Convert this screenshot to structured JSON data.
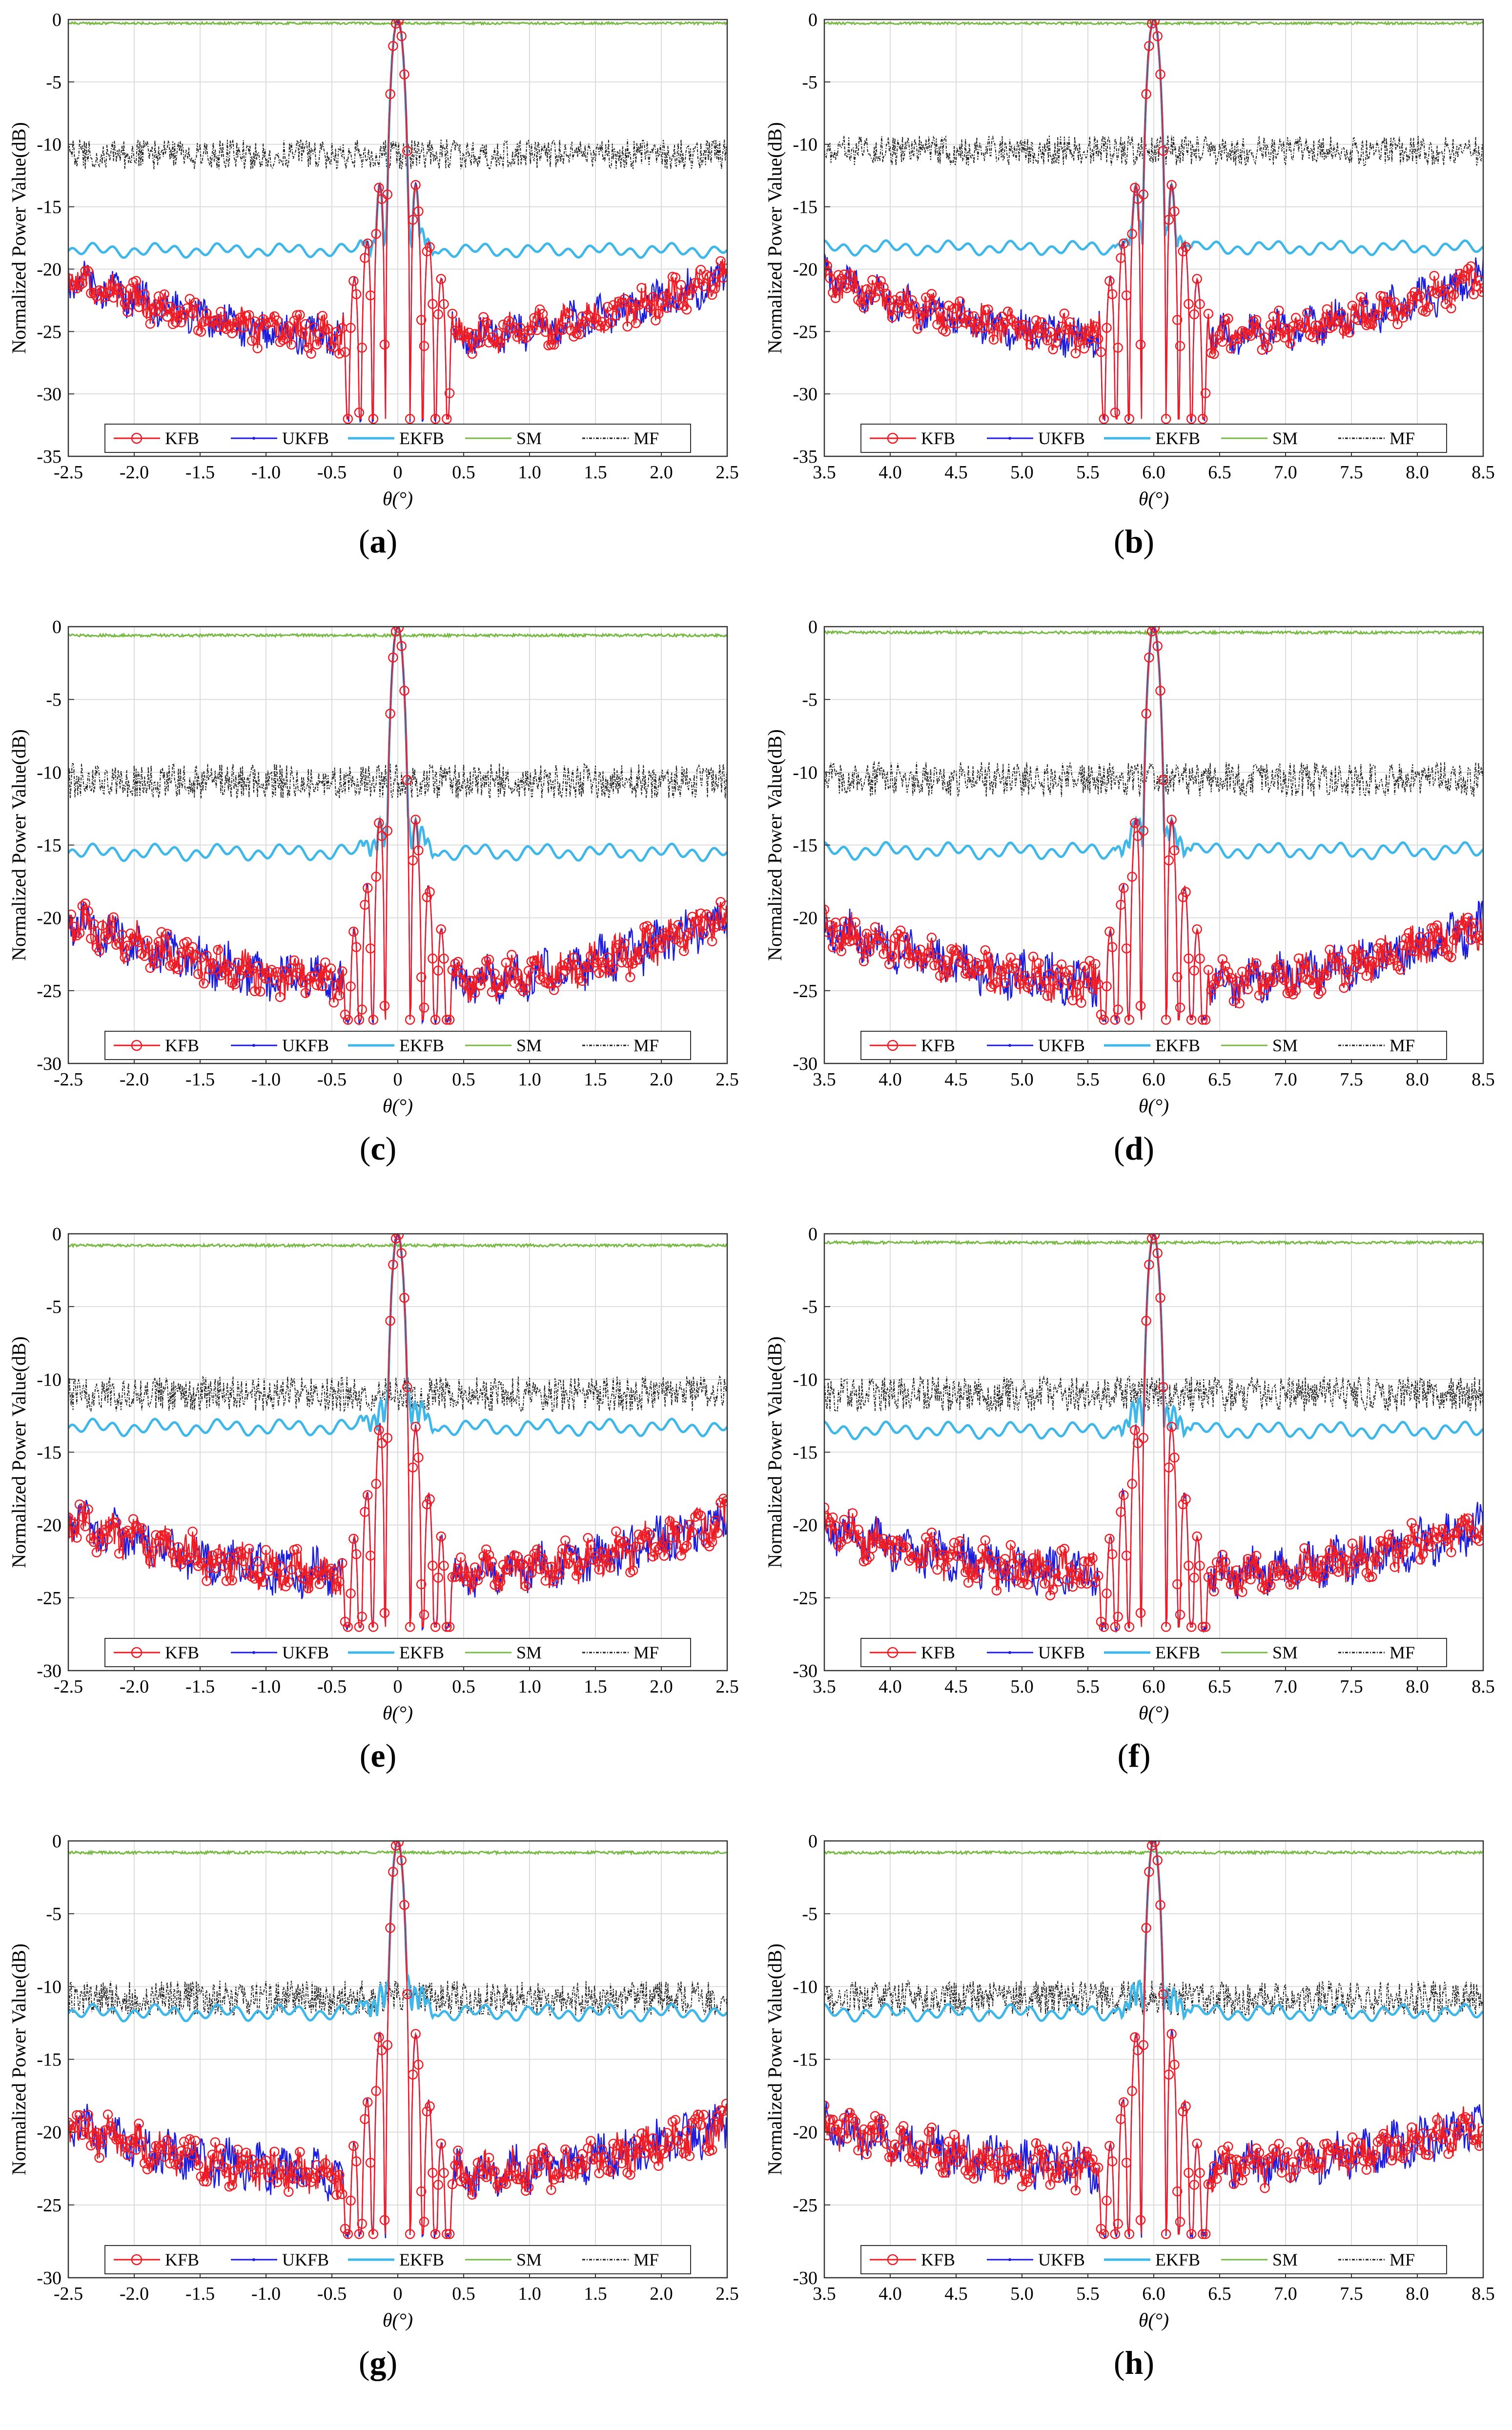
{
  "figure": {
    "panels": [
      "a",
      "b",
      "c",
      "d",
      "e",
      "f",
      "g",
      "h"
    ]
  },
  "chart_data": [
    {
      "id": "a",
      "type": "line",
      "label": "a",
      "xlabel": "θ(°)",
      "ylabel": "Normalized Power Value(dB)",
      "xlim": [
        -2.5,
        2.5
      ],
      "ylim": [
        -35,
        0
      ],
      "xticks": [
        "-2.5",
        "-2.0",
        "-1.5",
        "-1.0",
        "-0.5",
        "0",
        "0.5",
        "1.0",
        "1.5",
        "2.0",
        "2.5"
      ],
      "yticks": [
        "0",
        "-5",
        "-10",
        "-15",
        "-20",
        "-25",
        "-30",
        "-35"
      ],
      "yvals": [
        0,
        -5,
        -10,
        -15,
        -20,
        -25,
        -30,
        -35
      ],
      "center": 0,
      "mf_level": -10.8,
      "ekfb_level": -18.5,
      "sm_level": -0.3,
      "sidelobe_floor": -25.5,
      "sidelobe_edge": -20.5,
      "first_sidelobe": -13.2,
      "legend": [
        "KFB",
        "UKFB",
        "EKFB",
        "SM",
        "MF"
      ]
    },
    {
      "id": "b",
      "type": "line",
      "label": "b",
      "xlabel": "θ(°)",
      "ylabel": "Normalized Power Value(dB)",
      "xlim": [
        3.5,
        8.5
      ],
      "ylim": [
        -35,
        0
      ],
      "xticks": [
        "3.5",
        "4.0",
        "4.5",
        "5.0",
        "5.5",
        "6.0",
        "6.5",
        "7.0",
        "7.5",
        "8.0",
        "8.5"
      ],
      "yticks": [
        "0",
        "-5",
        "-10",
        "-15",
        "-20",
        "-25",
        "-30",
        "-35"
      ],
      "yvals": [
        0,
        -5,
        -10,
        -15,
        -20,
        -25,
        -30,
        -35
      ],
      "center": 6,
      "mf_level": -10.5,
      "ekfb_level": -18.3,
      "sm_level": -0.3,
      "sidelobe_floor": -25.5,
      "sidelobe_edge": -20.5,
      "first_sidelobe": -13.0,
      "legend": [
        "KFB",
        "UKFB",
        "EKFB",
        "SM",
        "MF"
      ]
    },
    {
      "id": "c",
      "type": "line",
      "label": "c",
      "xlabel": "θ(°)",
      "ylabel": "Normalized Power Value(dB)",
      "xlim": [
        -2.5,
        2.5
      ],
      "ylim": [
        -30,
        0
      ],
      "xticks": [
        "-2.5",
        "-2.0",
        "-1.5",
        "-1.0",
        "-0.5",
        "0",
        "0.5",
        "1.0",
        "1.5",
        "2.0",
        "2.5"
      ],
      "yticks": [
        "0",
        "-5",
        "-10",
        "-15",
        "-20",
        "-25",
        "-30"
      ],
      "yvals": [
        0,
        -5,
        -10,
        -15,
        -20,
        -25,
        -30
      ],
      "center": 0,
      "mf_level": -10.6,
      "ekfb_level": -15.5,
      "sm_level": -0.6,
      "sidelobe_floor": -24.5,
      "sidelobe_edge": -20.0,
      "first_sidelobe": -13.0,
      "legend": [
        "KFB",
        "UKFB",
        "EKFB",
        "SM",
        "MF"
      ]
    },
    {
      "id": "d",
      "type": "line",
      "label": "d",
      "xlabel": "θ(°)",
      "ylabel": "Normalized Power Value(dB)",
      "xlim": [
        3.5,
        8.5
      ],
      "ylim": [
        -30,
        0
      ],
      "xticks": [
        "3.5",
        "4.0",
        "4.5",
        "5.0",
        "5.5",
        "6.0",
        "6.5",
        "7.0",
        "7.5",
        "8.0",
        "8.5"
      ],
      "yticks": [
        "0",
        "-5",
        "-10",
        "-15",
        "-20",
        "-25",
        "-30"
      ],
      "yvals": [
        0,
        -5,
        -10,
        -15,
        -20,
        -25,
        -30
      ],
      "center": 6,
      "mf_level": -10.5,
      "ekfb_level": -15.4,
      "sm_level": -0.4,
      "sidelobe_floor": -24.5,
      "sidelobe_edge": -20.5,
      "first_sidelobe": -13.0,
      "legend": [
        "KFB",
        "UKFB",
        "EKFB",
        "SM",
        "MF"
      ]
    },
    {
      "id": "e",
      "type": "line",
      "label": "e",
      "xlabel": "θ(°)",
      "ylabel": "Normalized Power Value(dB)",
      "xlim": [
        -2.5,
        2.5
      ],
      "ylim": [
        -30,
        0
      ],
      "xticks": [
        "-2.5",
        "-2.0",
        "-1.5",
        "-1.0",
        "-0.5",
        "0",
        "0.5",
        "1.0",
        "1.5",
        "2.0",
        "2.5"
      ],
      "yticks": [
        "0",
        "-5",
        "-10",
        "-15",
        "-20",
        "-25",
        "-30"
      ],
      "yvals": [
        0,
        -5,
        -10,
        -15,
        -20,
        -25,
        -30
      ],
      "center": 0,
      "mf_level": -11.0,
      "ekfb_level": -13.3,
      "sm_level": -0.8,
      "sidelobe_floor": -23.5,
      "sidelobe_edge": -19.5,
      "first_sidelobe": -13.0,
      "legend": [
        "KFB",
        "UKFB",
        "EKFB",
        "SM",
        "MF"
      ]
    },
    {
      "id": "f",
      "type": "line",
      "label": "f",
      "xlabel": "θ(°)",
      "ylabel": "Normalized Power Value(dB)",
      "xlim": [
        3.5,
        8.5
      ],
      "ylim": [
        -30,
        0
      ],
      "xticks": [
        "3.5",
        "4.0",
        "4.5",
        "5.0",
        "5.5",
        "6.0",
        "6.5",
        "7.0",
        "7.5",
        "8.0",
        "8.5"
      ],
      "yticks": [
        "0",
        "-5",
        "-10",
        "-15",
        "-20",
        "-25",
        "-30"
      ],
      "yvals": [
        0,
        -5,
        -10,
        -15,
        -20,
        -25,
        -30
      ],
      "center": 6,
      "mf_level": -11.0,
      "ekfb_level": -13.5,
      "sm_level": -0.6,
      "sidelobe_floor": -23.5,
      "sidelobe_edge": -20.0,
      "first_sidelobe": -13.0,
      "legend": [
        "KFB",
        "UKFB",
        "EKFB",
        "SM",
        "MF"
      ]
    },
    {
      "id": "g",
      "type": "line",
      "label": "g",
      "xlabel": "θ(°)",
      "ylabel": "Normalized Power Value(dB)",
      "xlim": [
        -2.5,
        2.5
      ],
      "ylim": [
        -30,
        0
      ],
      "xticks": [
        "-2.5",
        "-2.0",
        "-1.5",
        "-1.0",
        "-0.5",
        "0",
        "0.5",
        "1.0",
        "1.5",
        "2.0",
        "2.5"
      ],
      "yticks": [
        "0",
        "-5",
        "-10",
        "-15",
        "-20",
        "-25",
        "-30"
      ],
      "yvals": [
        0,
        -5,
        -10,
        -15,
        -20,
        -25,
        -30
      ],
      "center": 0,
      "mf_level": -10.8,
      "ekfb_level": -11.8,
      "sm_level": -0.8,
      "sidelobe_floor": -23.0,
      "sidelobe_edge": -19.5,
      "first_sidelobe": -13.0,
      "legend": [
        "KFB",
        "UKFB",
        "EKFB",
        "SM",
        "MF"
      ]
    },
    {
      "id": "h",
      "type": "line",
      "label": "h",
      "xlabel": "θ(°)",
      "ylabel": "Normalized Power Value(dB)",
      "xlim": [
        3.5,
        8.5
      ],
      "ylim": [
        -30,
        0
      ],
      "xticks": [
        "3.5",
        "4.0",
        "4.5",
        "5.0",
        "5.5",
        "6.0",
        "6.5",
        "7.0",
        "7.5",
        "8.0",
        "8.5"
      ],
      "yticks": [
        "0",
        "-5",
        "-10",
        "-15",
        "-20",
        "-25",
        "-30"
      ],
      "yvals": [
        0,
        -5,
        -10,
        -15,
        -20,
        -25,
        -30
      ],
      "center": 6,
      "mf_level": -10.8,
      "ekfb_level": -11.8,
      "sm_level": -0.8,
      "sidelobe_floor": -22.5,
      "sidelobe_edge": -19.5,
      "first_sidelobe": -13.0,
      "legend": [
        "KFB",
        "UKFB",
        "EKFB",
        "SM",
        "MF"
      ]
    }
  ],
  "colors": {
    "KFB": "#ee1c25",
    "UKFB": "#1d1de0",
    "EKFB": "#3fb7e8",
    "SM": "#77b944",
    "MF": "#222222"
  }
}
